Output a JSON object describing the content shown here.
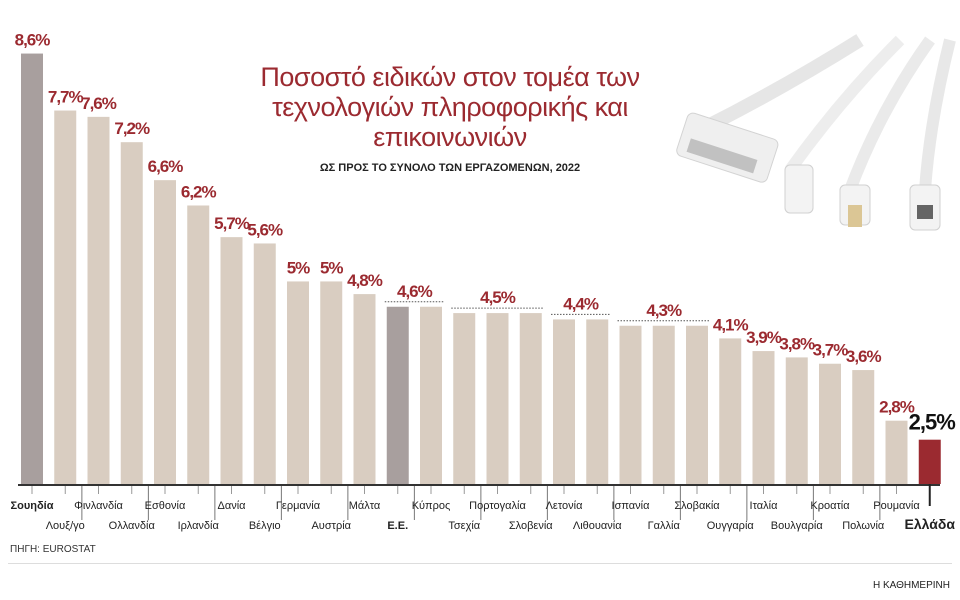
{
  "chart_data": {
    "type": "bar",
    "title": "Ποσοστό ειδικών στον τομέα των τεχνολογιών πληροφορικής και επικοινωνιών",
    "subtitle": "ΩΣ ΠΡΟΣ ΤΟ ΣΥΝΟΛΟ ΤΩΝ ΕΡΓΑΖΟΜΕΝΩΝ, 2022",
    "categories": [
      "Σουηδία",
      "Λουξ/γο",
      "Φινλανδία",
      "Ολλανδία",
      "Εσθονία",
      "Ιρλανδία",
      "Δανία",
      "Βέλγιο",
      "Γερμανία",
      "Αυστρία",
      "Μάλτα",
      "Ε.Ε.",
      "Κύπρος",
      "Τσεχία",
      "Πορτογαλία",
      "Σλοβενία",
      "Λετονία",
      "Λιθουανία",
      "Ισπανία",
      "Γαλλία",
      "Σλοβακία",
      "Ουγγαρία",
      "Ιταλία",
      "Βουλγαρία",
      "Κροατία",
      "Πολωνία",
      "Ρουμανία",
      "Ελλάδα"
    ],
    "values": [
      8.6,
      7.7,
      7.6,
      7.2,
      6.6,
      6.2,
      5.7,
      5.6,
      5,
      5,
      4.8,
      4.6,
      4.6,
      4.5,
      4.5,
      4.5,
      4.4,
      4.4,
      4.3,
      4.3,
      4.3,
      4.1,
      3.9,
      3.8,
      3.7,
      3.6,
      2.8,
      2.5
    ],
    "bold_categories": [
      "Σουηδία",
      "Ε.Ε.",
      "Ελλάδα"
    ],
    "data_labels": [
      {
        "text": "8,6%",
        "from": 0,
        "to": 0
      },
      {
        "text": "7,7%",
        "from": 1,
        "to": 1
      },
      {
        "text": "7,6%",
        "from": 2,
        "to": 2
      },
      {
        "text": "7,2%",
        "from": 3,
        "to": 3
      },
      {
        "text": "6,6%",
        "from": 4,
        "to": 4
      },
      {
        "text": "6,2%",
        "from": 5,
        "to": 5
      },
      {
        "text": "5,7%",
        "from": 6,
        "to": 6
      },
      {
        "text": "5,6%",
        "from": 7,
        "to": 7
      },
      {
        "text": "5%",
        "from": 8,
        "to": 8
      },
      {
        "text": "5%",
        "from": 9,
        "to": 9
      },
      {
        "text": "4,8%",
        "from": 10,
        "to": 10
      },
      {
        "text": "4,6%",
        "from": 11,
        "to": 12
      },
      {
        "text": "4,5%",
        "from": 13,
        "to": 15
      },
      {
        "text": "4,4%",
        "from": 16,
        "to": 17
      },
      {
        "text": "4,3%",
        "from": 18,
        "to": 20
      },
      {
        "text": "4,1%",
        "from": 21,
        "to": 21
      },
      {
        "text": "3,9%",
        "from": 22,
        "to": 22
      },
      {
        "text": "3,8%",
        "from": 23,
        "to": 23
      },
      {
        "text": "3,7%",
        "from": 24,
        "to": 24
      },
      {
        "text": "3,6%",
        "from": 25,
        "to": 25
      },
      {
        "text": "2,8%",
        "from": 26,
        "to": 26
      },
      {
        "text": "2,5%",
        "from": 27,
        "to": 27
      }
    ],
    "colors": {
      "default": "#d9cdc1",
      "highlight": "#a89f9e",
      "greece": "#9b2a30",
      "label": "#9b2a30"
    },
    "highlight_categories": [
      "Σουηδία",
      "Ε.Ε."
    ],
    "ylim": [
      1.8,
      8.6
    ],
    "grid": false,
    "xlabel": "",
    "ylabel": ""
  },
  "footer": {
    "source": "ΠΗΓΗ: EUROSTAT",
    "brand": "Η ΚΑΘΗΜΕΡΙΝΗ"
  }
}
